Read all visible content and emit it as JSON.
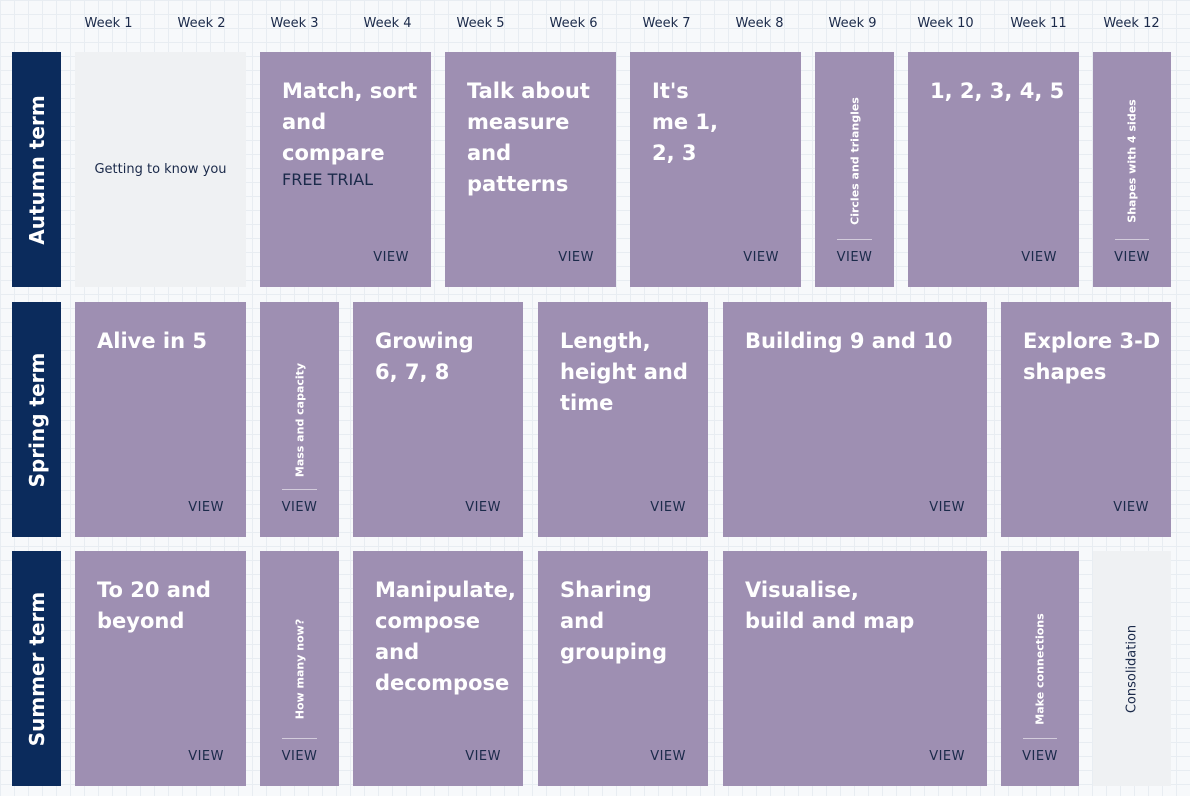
{
  "weeks": [
    "Week 1",
    "Week 2",
    "Week 3",
    "Week 4",
    "Week 5",
    "Week 6",
    "Week 7",
    "Week 8",
    "Week 9",
    "Week 10",
    "Week 11",
    "Week 12"
  ],
  "terms": [
    "Autumn term",
    "Spring term",
    "Summer term"
  ],
  "view_label": "VIEW",
  "autumn": {
    "getting_to_know": "Getting to know you",
    "match_sort": "Match, sort and compare",
    "free_trial": "FREE TRIAL",
    "talk_measure": "Talk about measure and patterns",
    "its_me": "It's me 1, 2, 3",
    "circles": "Circles and triangles",
    "one_to_five": "1, 2, 3, 4, 5",
    "shapes_4_sides": "Shapes with 4 sides"
  },
  "spring": {
    "alive_in_5": "Alive in 5",
    "mass_capacity": "Mass and capacity",
    "growing": "Growing 6, 7, 8",
    "length_height": "Length, height and time",
    "building": "Building 9 and 10",
    "explore_3d": "Explore 3-D shapes"
  },
  "summer": {
    "to_20": "To 20 and beyond",
    "how_many": "How many now?",
    "manipulate": "Manipulate, compose and decompose",
    "sharing": "Sharing and grouping",
    "visualise": "Visualise, build and map",
    "connections": "Make connections",
    "consolidation": "Consolidation"
  }
}
